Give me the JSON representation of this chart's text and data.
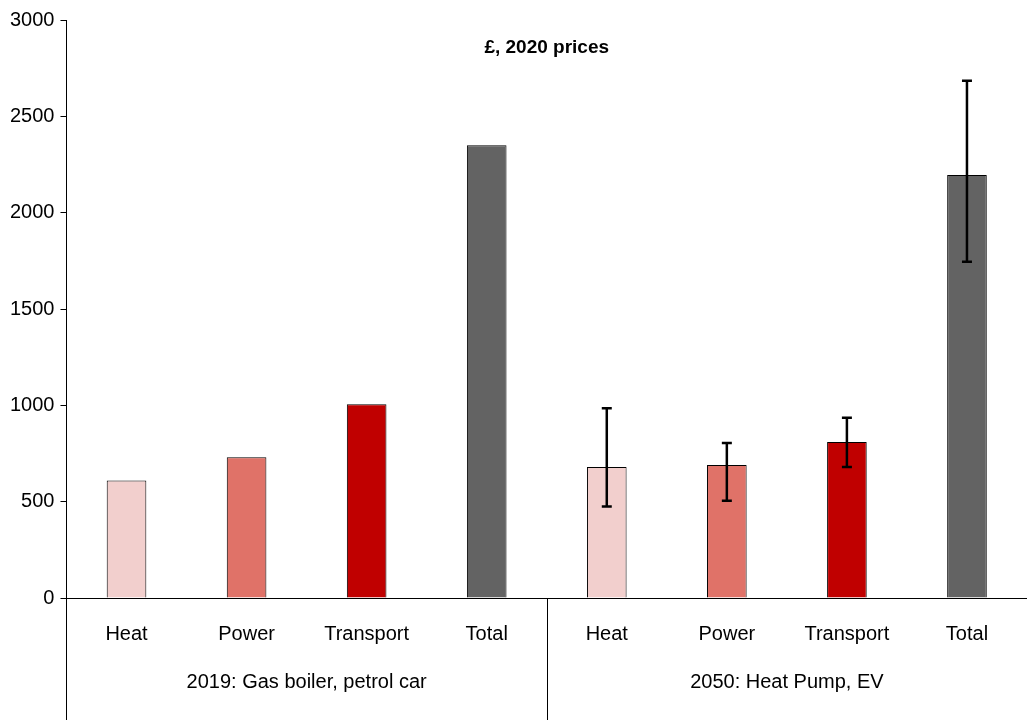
{
  "chart_data": {
    "type": "bar",
    "title": "£, 2020 prices",
    "categories": [
      "Heat",
      "Power",
      "Transport",
      "Total",
      "Heat",
      "Power",
      "Transport",
      "Total"
    ],
    "values": [
      610,
      730,
      1005,
      2350,
      680,
      690,
      810,
      2195
    ],
    "colors": [
      "#f2cfcd",
      "#e07268",
      "#c00000",
      "#636363",
      "#f2cfcd",
      "#e07268",
      "#c00000",
      "#636363"
    ],
    "errors": [
      null,
      null,
      null,
      null,
      [
        475,
        985
      ],
      [
        505,
        805
      ],
      [
        680,
        935
      ],
      [
        1745,
        2685
      ]
    ],
    "ylim": [
      0,
      3000
    ],
    "yticks": [
      0,
      500,
      1000,
      1500,
      2000,
      2500,
      3000
    ],
    "annotations": [
      "2019: Gas boiler, petrol car",
      "2050: Heat Pump, EV"
    ],
    "grid": false,
    "legend": false
  }
}
